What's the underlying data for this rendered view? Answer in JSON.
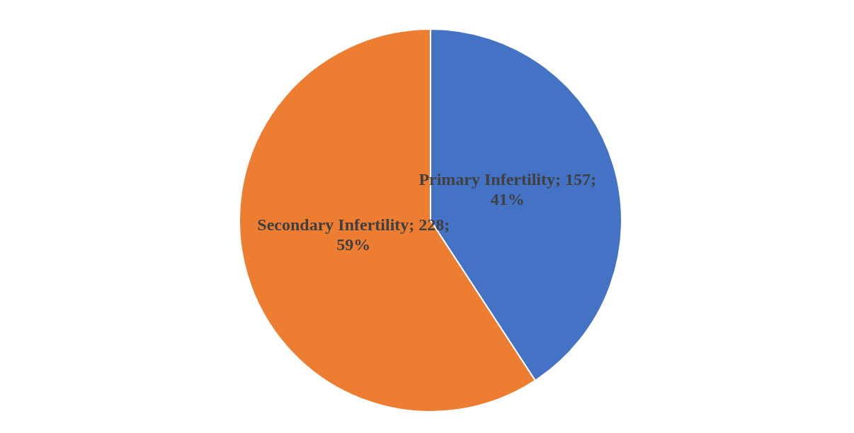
{
  "chart_data": {
    "type": "pie",
    "categories": [
      "Primary Infertility",
      "Secondary Infertility"
    ],
    "values": [
      157,
      228
    ],
    "colors": [
      "#4472c4",
      "#ed7d31"
    ],
    "value_labels": [
      "157; 41%",
      "228; 59%"
    ],
    "legend": false
  }
}
